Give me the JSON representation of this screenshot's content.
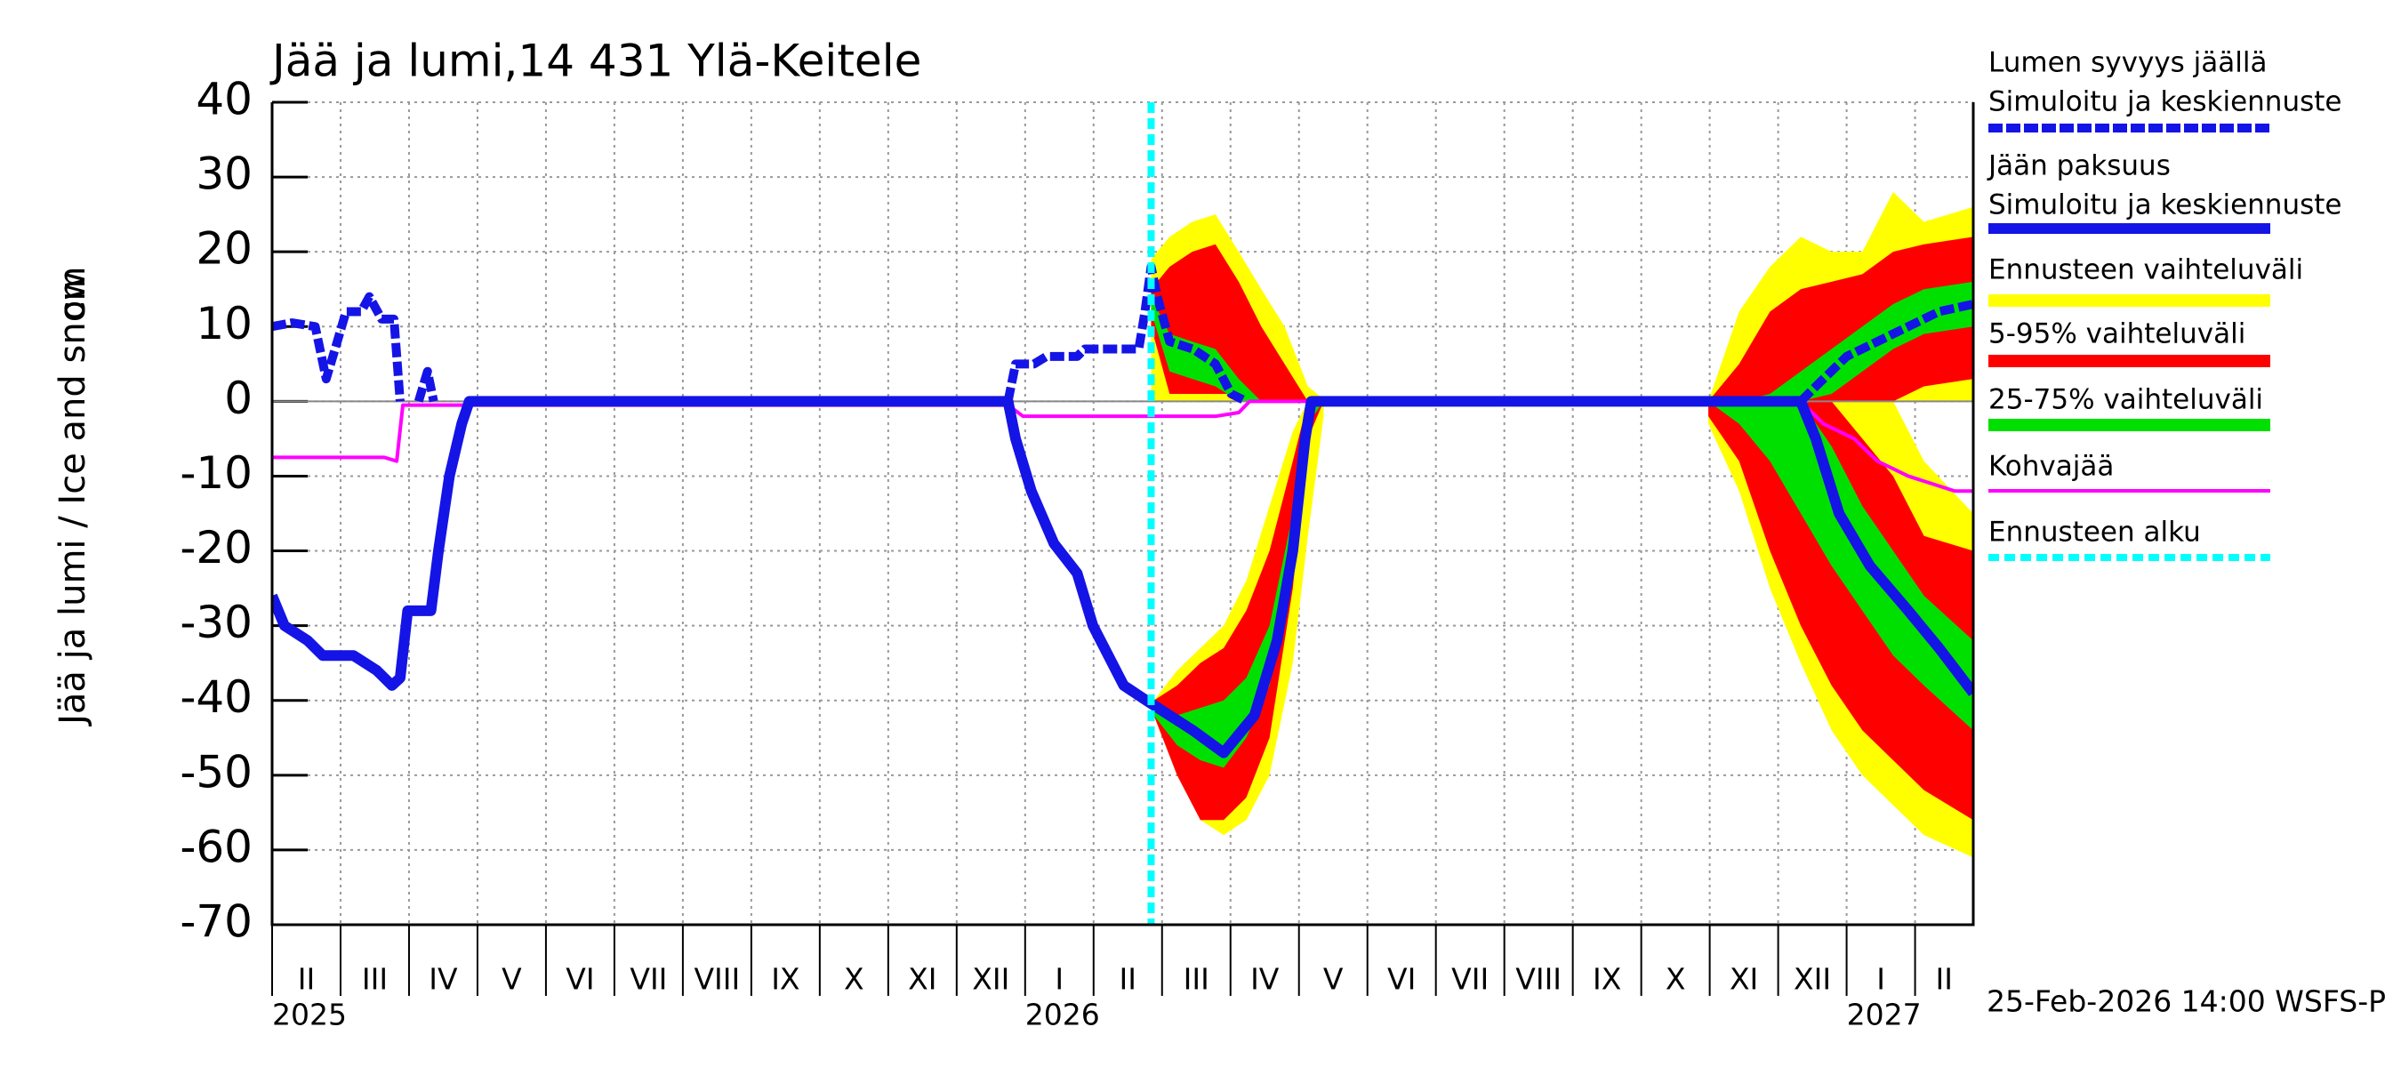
{
  "chart_data": {
    "type": "line",
    "title": "Jää ja lumi,14 431 Ylä-Keitele",
    "ylabel": "Jää ja lumi / Ice and snow",
    "yunit": "cm",
    "footer": "25-Feb-2026 14:00 WSFS-P",
    "legend": "right",
    "grid": true,
    "xlim": [
      0,
      24.85
    ],
    "ylim": [
      -70,
      40
    ],
    "yticks": [
      -70,
      -60,
      -50,
      -40,
      -30,
      -20,
      -10,
      0,
      10,
      20,
      30,
      40
    ],
    "xticks": [
      {
        "value": 0,
        "label": "II"
      },
      {
        "value": 1,
        "label": "III"
      },
      {
        "value": 2,
        "label": "IV"
      },
      {
        "value": 3,
        "label": "V"
      },
      {
        "value": 4,
        "label": "VI"
      },
      {
        "value": 5,
        "label": "VII"
      },
      {
        "value": 6,
        "label": "VIII"
      },
      {
        "value": 7,
        "label": "IX"
      },
      {
        "value": 8,
        "label": "X"
      },
      {
        "value": 9,
        "label": "XI"
      },
      {
        "value": 10,
        "label": "XII"
      },
      {
        "value": 11,
        "label": "I"
      },
      {
        "value": 12,
        "label": "II"
      },
      {
        "value": 13,
        "label": "III"
      },
      {
        "value": 14,
        "label": "IV"
      },
      {
        "value": 15,
        "label": "V"
      },
      {
        "value": 16,
        "label": "VI"
      },
      {
        "value": 17,
        "label": "VII"
      },
      {
        "value": 18,
        "label": "VIII"
      },
      {
        "value": 19,
        "label": "IX"
      },
      {
        "value": 20,
        "label": "X"
      },
      {
        "value": 21,
        "label": "XI"
      },
      {
        "value": 22,
        "label": "XII"
      },
      {
        "value": 23,
        "label": "I"
      },
      {
        "value": 24,
        "label": "II"
      }
    ],
    "year_ticks": [
      {
        "value": 0,
        "label": "2025"
      },
      {
        "value": 11,
        "label": "2026"
      },
      {
        "value": 23,
        "label": "2027"
      }
    ],
    "forecast_start": {
      "name": "Ennusteen alku",
      "x": 12.84,
      "color": "#00ffff"
    },
    "bands": [
      {
        "name": "Ennusteen vaihteluväli",
        "color": "#ffff00",
        "parts": [
          {
            "x": [
              12.84,
              13.11,
              13.44,
              13.78,
              14.12,
              14.45,
              14.79,
              15.13,
              15.4
            ],
            "high": [
              19,
              22,
              24,
              25,
              20,
              15,
              10,
              2,
              0
            ],
            "low": [
              0,
              0,
              0,
              0,
              0,
              0,
              0,
              0,
              0
            ]
          },
          {
            "x": [
              12.88,
              13.22,
              13.56,
              13.9,
              14.23,
              14.57,
              14.91,
              15.13,
              15.36
            ],
            "high": [
              -40,
              -36,
              -33,
              -30,
              -24,
              -14,
              -4,
              0,
              0
            ],
            "low": [
              -42,
              -50,
              -56,
              -58,
              -56,
              -50,
              -35,
              -18,
              -2
            ]
          },
          {
            "x": [
              20.98,
              21.43,
              21.88,
              22.33,
              22.78,
              23.23,
              23.68,
              24.13,
              24.85
            ],
            "high": [
              0,
              12,
              18,
              22,
              20,
              20,
              28,
              24,
              26
            ],
            "low": [
              0,
              0,
              0,
              0,
              0,
              0,
              0,
              0,
              0
            ]
          },
          {
            "x": [
              20.98,
              21.43,
              21.88,
              22.33,
              22.78,
              23.23,
              23.68,
              24.13,
              24.85
            ],
            "high": [
              0,
              0,
              0,
              0,
              0,
              0,
              0,
              -8,
              -15
            ],
            "low": [
              -3,
              -12,
              -25,
              -35,
              -44,
              -50,
              -54,
              -58,
              -61
            ]
          }
        ]
      },
      {
        "name": "5-95% vaihteluväli",
        "color": "#ff0000",
        "parts": [
          {
            "x": [
              12.84,
              13.11,
              13.44,
              13.78,
              14.12,
              14.45,
              14.79,
              15.13,
              15.4
            ],
            "high": [
              15,
              18,
              20,
              21,
              16,
              10,
              5,
              0,
              0
            ],
            "low": [
              10,
              1,
              1,
              1,
              1,
              0,
              0,
              0,
              0
            ]
          },
          {
            "x": [
              12.88,
              13.22,
              13.56,
              13.9,
              14.23,
              14.57,
              14.91,
              15.13,
              15.36
            ],
            "high": [
              -40,
              -38,
              -35,
              -33,
              -28,
              -20,
              -8,
              0,
              0
            ],
            "low": [
              -42,
              -50,
              -56,
              -56,
              -53,
              -45,
              -25,
              -5,
              0
            ]
          },
          {
            "x": [
              20.98,
              21.43,
              21.88,
              22.33,
              22.78,
              23.23,
              23.68,
              24.13,
              24.85
            ],
            "high": [
              0,
              5,
              12,
              15,
              16,
              17,
              20,
              21,
              22
            ],
            "low": [
              0,
              0,
              0,
              0,
              0,
              0,
              0,
              2,
              3
            ]
          },
          {
            "x": [
              20.98,
              21.43,
              21.88,
              22.33,
              22.78,
              23.23,
              23.68,
              24.13,
              24.85
            ],
            "high": [
              0,
              0,
              0,
              0,
              0,
              -5,
              -10,
              -18,
              -20
            ],
            "low": [
              -2,
              -8,
              -20,
              -30,
              -38,
              -44,
              -48,
              -52,
              -56
            ]
          }
        ]
      },
      {
        "name": "25-75% vaihteluväli",
        "color": "#00e000",
        "parts": [
          {
            "x": [
              12.84,
              13.11,
              13.44,
              13.78,
              14.12,
              14.45,
              14.79,
              15.13,
              15.4
            ],
            "high": [
              14,
              9,
              8,
              7,
              3,
              0,
              0,
              0,
              0
            ],
            "low": [
              12,
              4,
              3,
              2,
              0,
              0,
              0,
              0,
              0
            ]
          },
          {
            "x": [
              12.88,
              13.22,
              13.56,
              13.9,
              14.23,
              14.57,
              14.91,
              15.13,
              15.36
            ],
            "high": [
              -41,
              -42,
              -41,
              -40,
              -37,
              -30,
              -15,
              0,
              0
            ],
            "low": [
              -42,
              -46,
              -48,
              -49,
              -45,
              -38,
              -22,
              -3,
              0
            ]
          },
          {
            "x": [
              20.98,
              21.43,
              21.88,
              22.33,
              22.78,
              23.23,
              23.68,
              24.13,
              24.85
            ],
            "high": [
              0,
              0,
              1,
              4,
              7,
              10,
              13,
              15,
              16
            ],
            "low": [
              0,
              0,
              0,
              0,
              1,
              4,
              7,
              9,
              10
            ]
          },
          {
            "x": [
              20.98,
              21.43,
              21.88,
              22.33,
              22.78,
              23.23,
              23.68,
              24.13,
              24.85
            ],
            "high": [
              0,
              0,
              0,
              0,
              -6,
              -14,
              -20,
              -26,
              -32
            ],
            "low": [
              0,
              -3,
              -8,
              -15,
              -22,
              -28,
              -34,
              -38,
              -44
            ]
          }
        ]
      }
    ],
    "series": [
      {
        "name": "Lumen syvyys jäällä",
        "subname": "Simuloitu ja keskiennuste",
        "color": "#1414e6",
        "style": "dashed",
        "x": [
          0,
          0.29,
          0.63,
          0.79,
          0.92,
          1.08,
          1.3,
          1.42,
          1.6,
          1.78,
          1.87,
          1.95,
          2.14,
          2.27,
          2.36,
          2.45,
          10.75,
          10.86,
          11.13,
          11.31,
          11.54,
          11.76,
          11.87,
          12.21,
          12.66,
          12.75,
          12.84,
          12.93,
          13.11,
          13.45,
          13.78,
          14.01,
          14.23,
          14.4,
          22.33,
          22.55,
          23.0,
          23.45,
          23.9,
          24.35,
          24.85
        ],
        "values": [
          10,
          10.5,
          10,
          3,
          7,
          12,
          12,
          14,
          11,
          11,
          0,
          null,
          0,
          4,
          0,
          null,
          0,
          5,
          5,
          6,
          6,
          6,
          7,
          7,
          7,
          12,
          18,
          14,
          8,
          7,
          5,
          1,
          0,
          null,
          0,
          2,
          6,
          8,
          10,
          12,
          13
        ]
      },
      {
        "name": "Jään paksuus",
        "subname": "Simuloitu ja keskiennuste",
        "color": "#1414e6",
        "style": "solid",
        "x": [
          0,
          0.18,
          0.52,
          0.74,
          1.19,
          1.53,
          1.75,
          1.87,
          1.98,
          2.32,
          2.43,
          2.59,
          2.77,
          2.88,
          10.75,
          10.86,
          11.09,
          11.42,
          11.76,
          11.99,
          12.44,
          12.77,
          13.11,
          13.45,
          13.9,
          14.35,
          14.68,
          14.91,
          15.09,
          15.18,
          22.33,
          22.55,
          22.89,
          23.34,
          23.9,
          24.35,
          24.85
        ],
        "values": [
          -26,
          -30,
          -32,
          -34,
          -34,
          -36,
          -38,
          -37,
          -28,
          -28,
          -20,
          -10,
          -3,
          0,
          0,
          -5,
          -12,
          -19,
          -23,
          -30,
          -38,
          -40,
          -42,
          -44,
          -47,
          -42,
          -32,
          -20,
          -5,
          0,
          0,
          -5,
          -15,
          -22,
          -28,
          -33,
          -39
        ]
      },
      {
        "name": "Kohvajää",
        "color": "#ff00ff",
        "style": "thin",
        "x": [
          0,
          1.64,
          1.82,
          1.91,
          10.75,
          10.97,
          13.78,
          14.12,
          14.28,
          22.33,
          22.66,
          23.11,
          23.45,
          23.9,
          24.58,
          24.85
        ],
        "values": [
          -7.5,
          -7.5,
          -8,
          -0.5,
          -0.5,
          -2,
          -2,
          -1.5,
          0,
          0,
          -3,
          -5,
          -8,
          -10,
          -12,
          -12
        ]
      }
    ]
  }
}
